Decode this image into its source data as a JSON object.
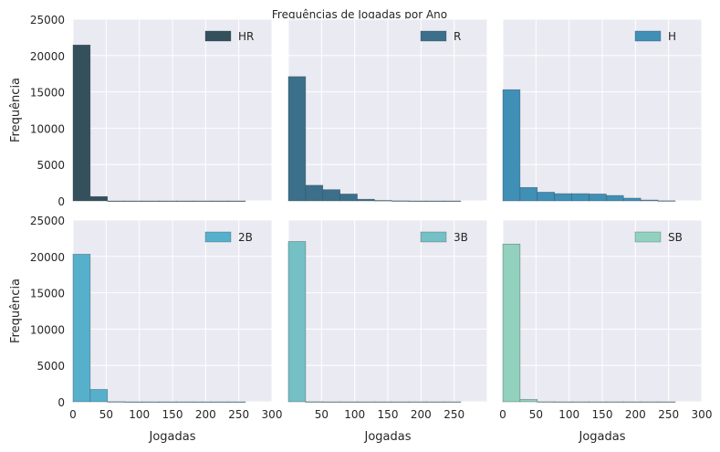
{
  "figure": {
    "title": "Frequências de Jogadas por Ano"
  },
  "chart_data": {
    "type": "bar",
    "suptitle": "Frequências de Jogadas por Ano",
    "xlabel": "Jogadas",
    "ylabel": "Frequência",
    "xlim": [
      0,
      300
    ],
    "ylim": [
      0,
      25000
    ],
    "xticks": [
      "0",
      "50",
      "100",
      "150",
      "200",
      "250",
      "300"
    ],
    "yticks": [
      "0",
      "5000",
      "10000",
      "15000",
      "20000",
      "25000"
    ],
    "grid": true,
    "legend_position": "top-right",
    "panels": [
      {
        "name": "HR",
        "color": "#34505d",
        "bins": [
          [
            0,
            26
          ],
          [
            26,
            52
          ],
          [
            52,
            78
          ],
          [
            78,
            104
          ],
          [
            104,
            130
          ],
          [
            130,
            156
          ],
          [
            156,
            182
          ],
          [
            182,
            208
          ],
          [
            208,
            234
          ],
          [
            234,
            260
          ]
        ],
        "values": [
          21450,
          600,
          0,
          0,
          0,
          0,
          0,
          0,
          0,
          0
        ]
      },
      {
        "name": "R",
        "color": "#3b6f8a",
        "bins": [
          [
            0,
            26
          ],
          [
            26,
            52
          ],
          [
            52,
            78
          ],
          [
            78,
            104
          ],
          [
            104,
            130
          ],
          [
            130,
            156
          ],
          [
            156,
            182
          ],
          [
            182,
            208
          ],
          [
            208,
            234
          ],
          [
            234,
            260
          ]
        ],
        "values": [
          17100,
          2150,
          1550,
          950,
          230,
          60,
          15,
          0,
          0,
          0
        ]
      },
      {
        "name": "H",
        "color": "#3f8fb6",
        "bins": [
          [
            0,
            26
          ],
          [
            26,
            52
          ],
          [
            52,
            78
          ],
          [
            78,
            104
          ],
          [
            104,
            130
          ],
          [
            130,
            156
          ],
          [
            156,
            182
          ],
          [
            182,
            208
          ],
          [
            208,
            234
          ],
          [
            234,
            260
          ]
        ],
        "values": [
          15300,
          1850,
          1200,
          1000,
          1000,
          950,
          750,
          380,
          120,
          20
        ]
      },
      {
        "name": "2B",
        "color": "#56b0cc",
        "bins": [
          [
            0,
            26
          ],
          [
            26,
            52
          ],
          [
            52,
            78
          ],
          [
            78,
            104
          ],
          [
            104,
            130
          ],
          [
            130,
            156
          ],
          [
            156,
            182
          ],
          [
            182,
            208
          ],
          [
            208,
            234
          ],
          [
            234,
            260
          ]
        ],
        "values": [
          20300,
          1700,
          20,
          0,
          0,
          0,
          0,
          0,
          0,
          0
        ]
      },
      {
        "name": "3B",
        "color": "#74c0c4",
        "bins": [
          [
            0,
            26
          ],
          [
            26,
            52
          ],
          [
            52,
            78
          ],
          [
            78,
            104
          ],
          [
            104,
            130
          ],
          [
            130,
            156
          ],
          [
            156,
            182
          ],
          [
            182,
            208
          ],
          [
            208,
            234
          ],
          [
            234,
            260
          ]
        ],
        "values": [
          22050,
          10,
          0,
          0,
          0,
          0,
          0,
          0,
          0,
          0
        ]
      },
      {
        "name": "SB",
        "color": "#92d1bd",
        "bins": [
          [
            0,
            26
          ],
          [
            26,
            52
          ],
          [
            52,
            78
          ],
          [
            78,
            104
          ],
          [
            104,
            130
          ],
          [
            130,
            156
          ],
          [
            156,
            182
          ],
          [
            182,
            208
          ],
          [
            208,
            234
          ],
          [
            234,
            260
          ]
        ],
        "values": [
          21700,
          320,
          10,
          0,
          0,
          0,
          0,
          0,
          0,
          0
        ]
      }
    ]
  }
}
